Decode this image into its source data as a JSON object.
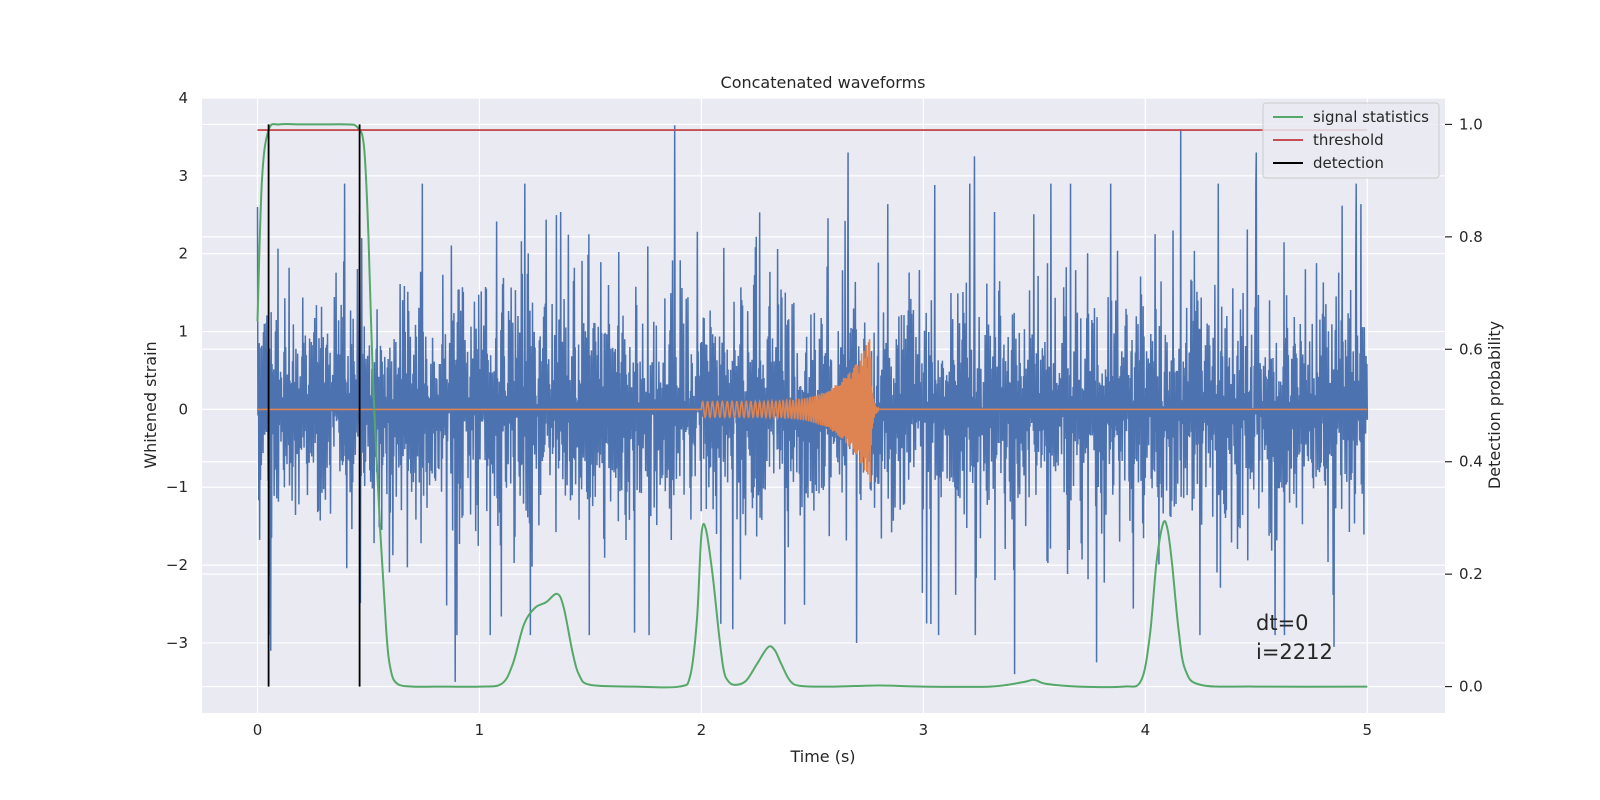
{
  "chart_data": {
    "type": "line",
    "title": "Concatenated waveforms",
    "xlabel": "Time (s)",
    "ylabel": "Whitened strain",
    "y2label": "Detection probability",
    "xlim": [
      -0.25,
      5.35
    ],
    "ylim": [
      -3.9,
      4.0
    ],
    "y2lim": [
      -0.047,
      1.047
    ],
    "x_ticks": [
      0,
      1,
      2,
      3,
      4,
      5
    ],
    "y_ticks": [
      -3,
      -2,
      -1,
      0,
      1,
      2,
      3,
      4
    ],
    "y2_ticks": [
      "0.0",
      "0.2",
      "0.4",
      "0.6",
      "0.8",
      "1.0"
    ],
    "grid": true,
    "legend": {
      "position": "top-right",
      "entries": [
        {
          "label": "signal statistics",
          "color": "#55a868"
        },
        {
          "label": "threshold",
          "color": "#c44e52"
        },
        {
          "label": "detection",
          "color": "#000000"
        }
      ]
    },
    "colors": {
      "strain": "#4c72b0",
      "template": "#dd8452",
      "signal_statistics": "#55a868",
      "threshold": "#c44e52",
      "detection": "#000000",
      "background": "#eaeaf2",
      "grid": "#ffffff"
    },
    "series": [
      {
        "name": "signal statistics",
        "axis": "right",
        "x": [
          0.0,
          0.02,
          0.05,
          0.1,
          0.2,
          0.3,
          0.4,
          0.45,
          0.48,
          0.5,
          0.52,
          0.55,
          0.58,
          0.6,
          0.63,
          0.7,
          0.8,
          1.0,
          1.1,
          1.15,
          1.2,
          1.25,
          1.3,
          1.35,
          1.38,
          1.42,
          1.45,
          1.5,
          1.7,
          1.9,
          1.95,
          1.98,
          2.0,
          2.02,
          2.05,
          2.08,
          2.1,
          2.12,
          2.15,
          2.2,
          2.25,
          2.3,
          2.33,
          2.36,
          2.4,
          2.45,
          2.6,
          2.8,
          3.0,
          3.3,
          3.45,
          3.5,
          3.55,
          3.7,
          3.9,
          3.98,
          4.02,
          4.05,
          4.08,
          4.1,
          4.12,
          4.15,
          4.18,
          4.25,
          4.5,
          5.0
        ],
        "values": [
          0.65,
          0.9,
          0.99,
          1.0,
          1.0,
          1.0,
          1.0,
          0.995,
          0.96,
          0.8,
          0.55,
          0.3,
          0.1,
          0.03,
          0.005,
          0.0,
          0.0,
          0.0,
          0.005,
          0.04,
          0.11,
          0.14,
          0.15,
          0.165,
          0.14,
          0.06,
          0.02,
          0.003,
          0.0,
          0.0,
          0.02,
          0.12,
          0.27,
          0.28,
          0.2,
          0.09,
          0.03,
          0.01,
          0.003,
          0.01,
          0.04,
          0.07,
          0.065,
          0.04,
          0.01,
          0.001,
          0.0,
          0.002,
          0.0,
          0.0,
          0.008,
          0.012,
          0.005,
          0.0,
          0.0,
          0.01,
          0.09,
          0.22,
          0.29,
          0.28,
          0.22,
          0.1,
          0.03,
          0.003,
          0.0,
          0.0
        ]
      },
      {
        "name": "threshold",
        "axis": "right",
        "x": [
          0.0,
          5.0
        ],
        "values": [
          0.99,
          0.99
        ]
      },
      {
        "name": "detection",
        "axis": "right",
        "type": "vlines",
        "x": [
          0.05,
          0.46
        ],
        "ymin": 0.0,
        "ymax": 1.0
      },
      {
        "name": "",
        "axis": "left",
        "description_note": "",
        "x_range": [
          0.0,
          5.0
        ],
        "noise_std": 0.75,
        "peaks": [
          {
            "x": 0.0,
            "value": 2.6
          },
          {
            "x": 0.06,
            "value": -3.1
          },
          {
            "x": 0.46,
            "value": 2.5
          },
          {
            "x": 0.47,
            "value": 2.2
          },
          {
            "x": 1.88,
            "value": 3.65
          },
          {
            "x": 2.66,
            "value": 3.3
          },
          {
            "x": 3.23,
            "value": 3.25
          },
          {
            "x": 4.16,
            "value": 3.6
          },
          {
            "x": 4.5,
            "value": 3.3
          },
          {
            "x": 4.95,
            "value": 2.9
          },
          {
            "x": 0.89,
            "value": -3.5
          },
          {
            "x": 3.41,
            "value": -3.4
          },
          {
            "x": 3.78,
            "value": -3.25
          },
          {
            "x": 4.85,
            "value": -3.05
          },
          {
            "x": 2.7,
            "value": -3.0
          }
        ]
      },
      {
        "name": "",
        "axis": "left",
        "x": [
          2.0,
          2.76,
          2.77,
          2.8
        ],
        "amplitude_start": 0.1,
        "amplitude_peak": 0.95,
        "amplitude_end": 0.0
      }
    ],
    "annotations": [
      {
        "text": "dt=0",
        "x": 4.5,
        "y": -2.75
      },
      {
        "text": "i=2212",
        "x": 4.5,
        "y": -3.1
      }
    ]
  }
}
